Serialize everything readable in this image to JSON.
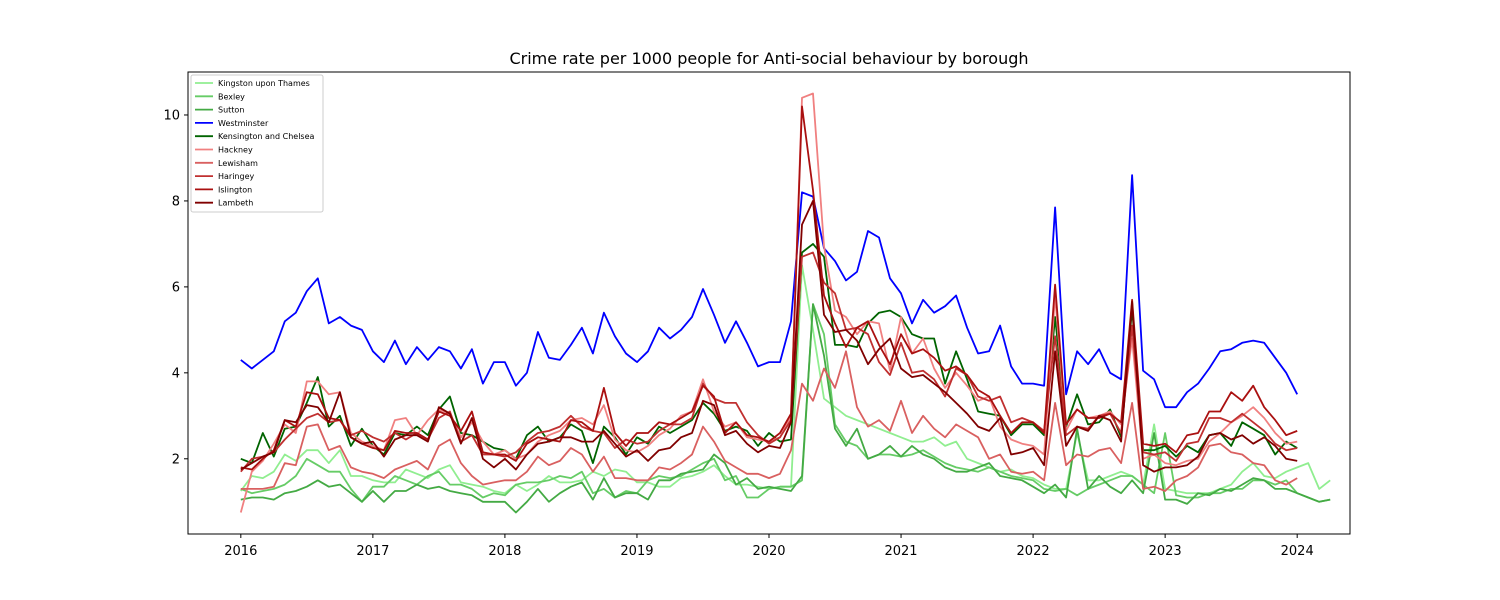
{
  "chart_data": {
    "type": "line",
    "title": "Crime rate per 1000 people for Anti-social behaviour by borough",
    "xlabel": "",
    "ylabel": "",
    "xlim": [
      2015.6,
      2024.4
    ],
    "ylim": [
      0.25,
      11.0
    ],
    "x_ticks": [
      2016,
      2017,
      2018,
      2019,
      2020,
      2021,
      2022,
      2023,
      2024
    ],
    "y_ticks": [
      2,
      4,
      6,
      8,
      10
    ],
    "legend_position": "top-left",
    "x_start": "2016-01",
    "series": [
      {
        "name": "Kingston upon Thames",
        "color": "#90ee90",
        "values": [
          1.25,
          1.6,
          1.55,
          1.7,
          2.1,
          1.95,
          2.2,
          2.2,
          1.9,
          2.2,
          1.6,
          1.6,
          1.5,
          1.45,
          1.45,
          1.75,
          1.65,
          1.55,
          1.75,
          1.85,
          1.45,
          1.4,
          1.35,
          1.25,
          1.2,
          1.4,
          1.25,
          1.4,
          1.6,
          1.45,
          1.45,
          1.5,
          1.7,
          1.6,
          1.75,
          1.7,
          1.45,
          1.45,
          1.35,
          1.35,
          1.55,
          1.6,
          1.7,
          1.85,
          1.6,
          1.4,
          1.4,
          1.35,
          1.3,
          1.35,
          1.35,
          6.5,
          5.0,
          3.4,
          3.2,
          3.0,
          2.9,
          2.8,
          2.7,
          2.6,
          2.5,
          2.4,
          2.4,
          2.5,
          2.3,
          2.4,
          2.0,
          1.9,
          1.8,
          1.7,
          1.75,
          1.6,
          1.55,
          1.4,
          1.3,
          1.3,
          2.6,
          1.5,
          1.5,
          1.6,
          1.7,
          1.6,
          1.4,
          2.8,
          1.3,
          1.25,
          1.2,
          1.2,
          1.2,
          1.3,
          1.4,
          1.7,
          1.9,
          1.6,
          1.55,
          1.7,
          1.8,
          1.9,
          1.3,
          1.5
        ]
      },
      {
        "name": "Bexley",
        "color": "#66cc66",
        "values": [
          1.3,
          1.2,
          1.25,
          1.3,
          1.4,
          1.6,
          2.0,
          1.85,
          1.7,
          1.7,
          1.3,
          1.0,
          1.35,
          1.35,
          1.6,
          1.5,
          1.4,
          1.6,
          1.7,
          1.4,
          1.4,
          1.3,
          1.1,
          1.2,
          1.15,
          1.4,
          1.45,
          1.45,
          1.5,
          1.6,
          1.55,
          1.7,
          1.2,
          1.3,
          1.1,
          1.25,
          1.2,
          1.5,
          1.6,
          1.55,
          1.6,
          1.75,
          1.9,
          2.0,
          1.5,
          1.6,
          1.1,
          1.1,
          1.3,
          1.35,
          1.35,
          1.5,
          5.6,
          4.9,
          2.8,
          2.4,
          2.3,
          2.0,
          2.1,
          2.1,
          2.05,
          2.1,
          2.2,
          2.05,
          1.9,
          1.8,
          1.75,
          1.7,
          1.8,
          1.7,
          1.6,
          1.55,
          1.5,
          1.3,
          1.25,
          1.3,
          1.15,
          1.3,
          1.4,
          1.5,
          1.6,
          1.6,
          1.4,
          1.2,
          2.6,
          1.15,
          1.1,
          1.1,
          1.2,
          1.2,
          1.3,
          1.3,
          1.5,
          1.5,
          1.4,
          1.5,
          1.2,
          1.1,
          1.0,
          1.05
        ]
      },
      {
        "name": "Sutton",
        "color": "#44aa44",
        "values": [
          1.05,
          1.1,
          1.1,
          1.05,
          1.2,
          1.25,
          1.35,
          1.5,
          1.35,
          1.4,
          1.2,
          1.0,
          1.25,
          1.0,
          1.25,
          1.25,
          1.4,
          1.3,
          1.35,
          1.25,
          1.2,
          1.15,
          1.0,
          1.0,
          1.0,
          0.75,
          1.0,
          1.3,
          1.0,
          1.2,
          1.35,
          1.45,
          1.05,
          1.55,
          1.1,
          1.2,
          1.2,
          1.05,
          1.5,
          1.5,
          1.65,
          1.7,
          1.75,
          2.1,
          1.9,
          1.4,
          1.55,
          1.3,
          1.35,
          1.3,
          1.25,
          1.6,
          5.6,
          4.4,
          2.7,
          2.3,
          2.7,
          2.0,
          2.1,
          2.3,
          2.05,
          2.3,
          2.1,
          2.0,
          1.8,
          1.7,
          1.7,
          1.8,
          1.9,
          1.6,
          1.55,
          1.5,
          1.35,
          1.2,
          1.4,
          1.1,
          2.7,
          1.3,
          1.6,
          1.35,
          1.2,
          1.5,
          1.2,
          2.6,
          1.05,
          1.05,
          0.95,
          1.2,
          1.15,
          1.3,
          1.25,
          1.4,
          1.55,
          1.5,
          1.3,
          1.3,
          1.2,
          1.1,
          1.0,
          1.05
        ]
      },
      {
        "name": "Westminster",
        "color": "#0000ff",
        "values": [
          4.3,
          4.1,
          4.3,
          4.5,
          5.2,
          5.4,
          5.9,
          6.2,
          5.15,
          5.3,
          5.1,
          5.0,
          4.5,
          4.25,
          4.75,
          4.2,
          4.6,
          4.3,
          4.6,
          4.5,
          4.1,
          4.55,
          3.75,
          4.25,
          4.25,
          3.7,
          4.0,
          4.95,
          4.35,
          4.3,
          4.65,
          5.05,
          4.45,
          5.4,
          4.85,
          4.45,
          4.25,
          4.5,
          5.05,
          4.8,
          5.0,
          5.3,
          5.95,
          5.35,
          4.7,
          5.2,
          4.7,
          4.15,
          4.25,
          4.25,
          5.2,
          8.2,
          8.1,
          6.9,
          6.6,
          6.15,
          6.35,
          7.3,
          7.15,
          6.2,
          5.85,
          5.15,
          5.7,
          5.4,
          5.55,
          5.8,
          5.05,
          4.45,
          4.5,
          5.1,
          4.15,
          3.75,
          3.75,
          3.7,
          7.85,
          3.5,
          4.5,
          4.2,
          4.55,
          4.0,
          3.85,
          8.6,
          4.05,
          3.85,
          3.2,
          3.2,
          3.55,
          3.75,
          4.1,
          4.5,
          4.55,
          4.7,
          4.75,
          4.7,
          4.35,
          4.0,
          3.5
        ]
      },
      {
        "name": "Kensington and Chelsea",
        "color": "#006400",
        "values": [
          2.0,
          1.9,
          2.6,
          2.05,
          2.7,
          2.75,
          3.3,
          3.9,
          2.75,
          3.0,
          2.3,
          2.7,
          2.3,
          2.1,
          2.6,
          2.55,
          2.75,
          2.55,
          3.15,
          3.45,
          2.6,
          2.55,
          2.4,
          2.25,
          2.2,
          2.0,
          2.55,
          2.75,
          2.4,
          2.5,
          2.8,
          2.65,
          1.9,
          2.75,
          2.5,
          2.1,
          2.5,
          2.35,
          2.75,
          2.6,
          2.75,
          2.9,
          3.3,
          3.05,
          2.65,
          2.75,
          2.65,
          2.3,
          2.6,
          2.4,
          2.45,
          6.8,
          7.0,
          6.7,
          4.65,
          4.65,
          4.6,
          5.15,
          5.4,
          5.45,
          5.3,
          4.9,
          4.8,
          4.8,
          3.75,
          4.5,
          3.85,
          3.1,
          3.05,
          3.0,
          2.55,
          2.8,
          2.8,
          2.55,
          5.3,
          2.75,
          3.5,
          2.8,
          2.85,
          3.15,
          2.5,
          5.5,
          2.2,
          2.2,
          2.3,
          2.05,
          2.3,
          2.15,
          2.55,
          2.6,
          2.3,
          2.85,
          2.7,
          2.55,
          2.1,
          2.4,
          2.25
        ]
      },
      {
        "name": "Hackney",
        "color": "#f08080",
        "values": [
          0.75,
          1.7,
          1.95,
          2.35,
          2.8,
          2.6,
          3.8,
          3.8,
          3.5,
          3.55,
          2.6,
          2.4,
          2.3,
          2.2,
          2.9,
          2.95,
          2.55,
          2.9,
          3.15,
          3.05,
          2.5,
          2.85,
          2.4,
          2.1,
          2.2,
          2.0,
          2.1,
          2.4,
          2.55,
          2.65,
          2.9,
          2.95,
          2.8,
          3.25,
          2.45,
          2.2,
          2.15,
          2.3,
          2.55,
          2.7,
          3.0,
          3.1,
          3.85,
          3.1,
          2.75,
          2.85,
          2.5,
          2.45,
          2.4,
          2.5,
          3.0,
          10.4,
          10.5,
          6.95,
          5.45,
          5.3,
          4.9,
          5.2,
          5.15,
          4.05,
          5.3,
          4.45,
          4.8,
          4.1,
          3.65,
          4.0,
          3.7,
          3.35,
          3.45,
          2.75,
          2.45,
          2.35,
          2.3,
          2.1,
          5.8,
          2.65,
          3.15,
          2.95,
          3.0,
          3.1,
          2.8,
          4.8,
          2.0,
          2.1,
          1.9,
          1.85,
          1.95,
          2.0,
          2.4,
          2.6,
          2.85,
          3.0,
          3.2,
          2.95,
          2.6,
          2.35,
          2.4
        ]
      },
      {
        "name": "Lewisham",
        "color": "#d96060",
        "values": [
          1.3,
          1.3,
          1.3,
          1.35,
          1.9,
          1.85,
          2.75,
          2.8,
          2.2,
          2.3,
          1.8,
          1.7,
          1.65,
          1.55,
          1.75,
          1.85,
          1.95,
          1.75,
          2.3,
          2.45,
          1.9,
          1.6,
          1.4,
          1.45,
          1.5,
          1.5,
          1.7,
          2.05,
          1.85,
          1.95,
          2.25,
          2.1,
          1.7,
          2.05,
          1.55,
          1.55,
          1.5,
          1.5,
          1.8,
          1.75,
          1.9,
          2.1,
          2.75,
          2.4,
          1.95,
          1.8,
          1.65,
          1.65,
          1.55,
          1.65,
          2.2,
          3.75,
          3.35,
          4.1,
          3.65,
          4.5,
          3.2,
          2.75,
          2.9,
          2.65,
          3.35,
          2.6,
          3.0,
          2.7,
          2.5,
          2.8,
          2.65,
          2.5,
          2.0,
          2.1,
          1.7,
          1.65,
          1.7,
          1.5,
          3.3,
          1.85,
          2.1,
          2.05,
          2.2,
          2.25,
          1.9,
          3.3,
          1.3,
          1.35,
          1.25,
          1.5,
          1.6,
          1.8,
          2.3,
          2.35,
          2.15,
          2.1,
          1.9,
          1.85,
          1.5,
          1.4,
          1.55
        ]
      },
      {
        "name": "Haringey",
        "color": "#c03030",
        "values": [
          1.7,
          2.0,
          2.05,
          2.15,
          2.45,
          2.7,
          2.95,
          3.05,
          2.85,
          2.9,
          2.55,
          2.65,
          2.5,
          2.4,
          2.6,
          2.45,
          2.6,
          2.45,
          2.95,
          3.1,
          2.4,
          2.55,
          2.1,
          2.1,
          2.05,
          2.15,
          2.4,
          2.6,
          2.65,
          2.75,
          3.0,
          2.75,
          2.65,
          2.6,
          2.25,
          2.45,
          2.35,
          2.4,
          2.65,
          2.8,
          2.8,
          2.95,
          3.75,
          3.4,
          3.3,
          3.3,
          2.85,
          2.55,
          2.35,
          2.5,
          2.9,
          6.7,
          6.8,
          6.1,
          5.85,
          5.0,
          5.05,
          4.9,
          4.25,
          3.95,
          4.7,
          4.0,
          4.05,
          3.85,
          3.45,
          4.1,
          3.95,
          3.45,
          3.35,
          3.45,
          2.85,
          2.95,
          2.85,
          2.65,
          4.85,
          2.55,
          2.75,
          2.7,
          3.0,
          3.05,
          2.6,
          5.1,
          2.15,
          2.1,
          2.15,
          1.95,
          2.35,
          2.4,
          2.95,
          2.95,
          2.85,
          3.05,
          2.85,
          2.65,
          2.35,
          2.2,
          2.25
        ]
      },
      {
        "name": "Islington",
        "color": "#aa1010",
        "values": [
          1.8,
          1.75,
          2.0,
          2.2,
          2.9,
          2.75,
          3.55,
          3.5,
          2.95,
          2.9,
          2.5,
          2.35,
          2.25,
          2.2,
          2.65,
          2.6,
          2.6,
          2.45,
          3.1,
          3.0,
          2.65,
          3.1,
          2.15,
          2.1,
          2.1,
          1.95,
          2.35,
          2.5,
          2.45,
          2.4,
          2.9,
          2.85,
          2.65,
          3.65,
          2.6,
          2.3,
          2.6,
          2.6,
          2.85,
          2.8,
          2.95,
          3.1,
          3.7,
          3.45,
          2.6,
          2.85,
          2.55,
          2.5,
          2.4,
          2.6,
          3.05,
          10.2,
          8.25,
          5.8,
          5.15,
          4.6,
          5.05,
          5.2,
          4.65,
          4.2,
          4.9,
          4.45,
          4.55,
          4.35,
          4.05,
          4.15,
          3.95,
          3.6,
          3.45,
          3.0,
          2.6,
          2.85,
          2.85,
          2.6,
          6.05,
          2.8,
          3.15,
          2.95,
          2.95,
          3.05,
          2.85,
          5.7,
          2.35,
          2.3,
          2.35,
          2.15,
          2.55,
          2.6,
          3.1,
          3.1,
          3.55,
          3.35,
          3.7,
          3.2,
          2.9,
          2.55,
          2.65
        ]
      },
      {
        "name": "Lambeth",
        "color": "#800000",
        "values": [
          1.75,
          1.9,
          2.05,
          2.15,
          2.9,
          2.85,
          3.25,
          3.2,
          2.85,
          3.55,
          2.5,
          2.35,
          2.4,
          2.05,
          2.45,
          2.55,
          2.55,
          2.4,
          3.2,
          3.05,
          2.35,
          2.95,
          2.0,
          1.8,
          2.0,
          1.75,
          2.1,
          2.35,
          2.4,
          2.5,
          2.5,
          2.4,
          2.4,
          2.65,
          2.35,
          2.05,
          2.2,
          1.95,
          2.2,
          2.25,
          2.5,
          2.6,
          3.35,
          3.25,
          2.55,
          2.65,
          2.35,
          2.15,
          2.3,
          2.25,
          2.85,
          7.45,
          8.0,
          5.35,
          4.95,
          5.0,
          4.75,
          4.2,
          4.55,
          4.8,
          4.1,
          3.9,
          3.95,
          3.75,
          3.55,
          3.3,
          3.05,
          2.75,
          2.65,
          2.95,
          2.1,
          2.15,
          2.25,
          1.85,
          4.5,
          2.3,
          2.75,
          2.65,
          3.0,
          2.9,
          2.4,
          5.65,
          1.85,
          1.7,
          1.8,
          1.8,
          1.85,
          2.05,
          2.55,
          2.6,
          2.45,
          2.55,
          2.35,
          2.5,
          2.3,
          2.0,
          1.95
        ]
      }
    ]
  }
}
